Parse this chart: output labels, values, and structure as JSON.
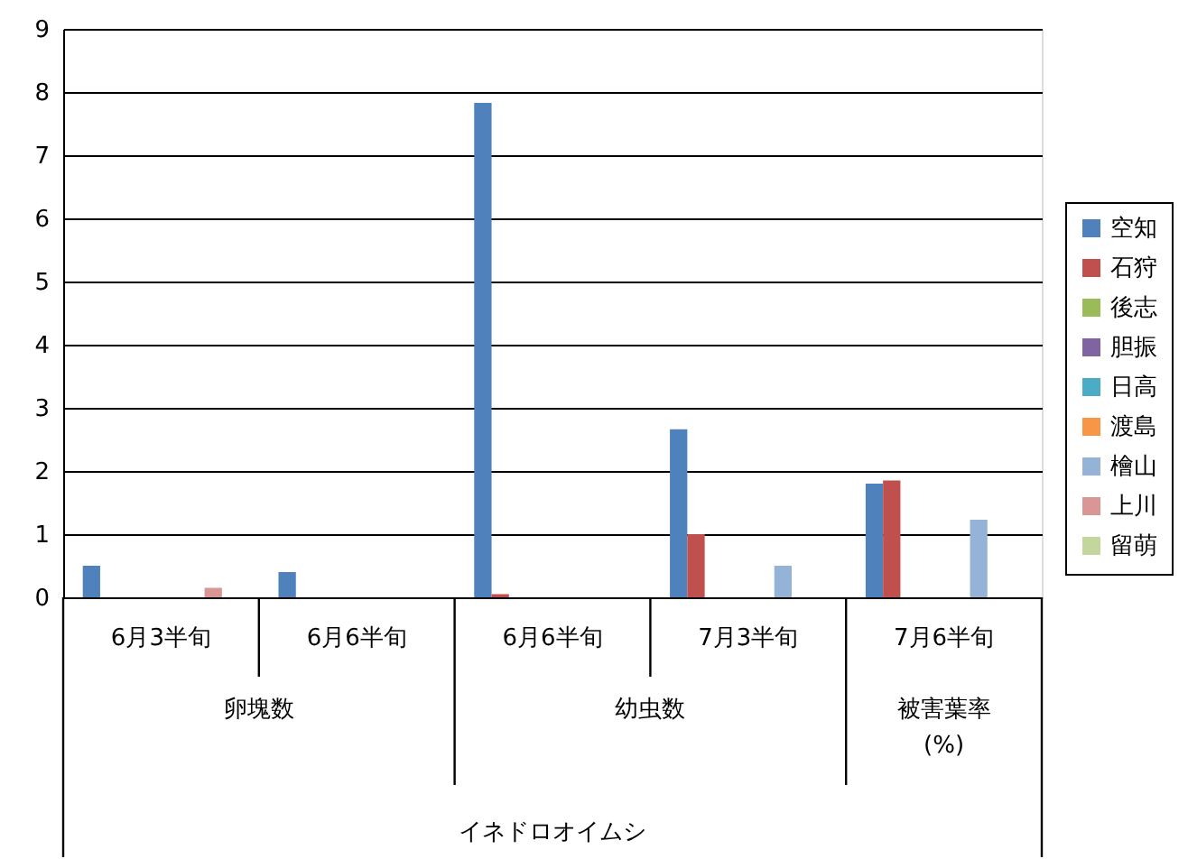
{
  "chart_data": {
    "type": "bar",
    "categories": [
      "6月3半旬",
      "6月6半旬",
      "6月6半旬",
      "7月3半旬",
      "7月6半旬"
    ],
    "annotations": [
      "卵塊数",
      "幼虫数",
      "被害葉率\n(%)",
      "イネドロオイムシ"
    ],
    "series": [
      {
        "name": "空知",
        "color": "#4f81bd",
        "values": [
          0.5,
          0.4,
          7.83,
          2.66,
          1.8
        ]
      },
      {
        "name": "石狩",
        "color": "#c0504d",
        "values": [
          null,
          null,
          0.05,
          1.0,
          1.85
        ]
      },
      {
        "name": "後志",
        "color": "#9bbb59",
        "values": [
          null,
          null,
          null,
          null,
          null
        ]
      },
      {
        "name": "胆振",
        "color": "#8064a2",
        "values": [
          null,
          null,
          null,
          null,
          null
        ]
      },
      {
        "name": "日高",
        "color": "#4bacc6",
        "values": [
          null,
          null,
          null,
          null,
          null
        ]
      },
      {
        "name": "渡島",
        "color": "#f79646",
        "values": [
          null,
          null,
          null,
          null,
          null
        ]
      },
      {
        "name": "檜山",
        "color": "#95b3d7",
        "values": [
          null,
          null,
          null,
          0.5,
          1.23
        ]
      },
      {
        "name": "上川",
        "color": "#da9694",
        "values": [
          0.15,
          null,
          null,
          null,
          null
        ]
      },
      {
        "name": "留萌",
        "color": "#c3d69b",
        "values": [
          null,
          null,
          null,
          null,
          null
        ]
      }
    ],
    "ylim": [
      0,
      9
    ],
    "yticks": [
      0,
      1,
      2,
      3,
      4,
      5,
      6,
      7,
      8,
      9
    ],
    "grid": "y",
    "legend": "right"
  }
}
